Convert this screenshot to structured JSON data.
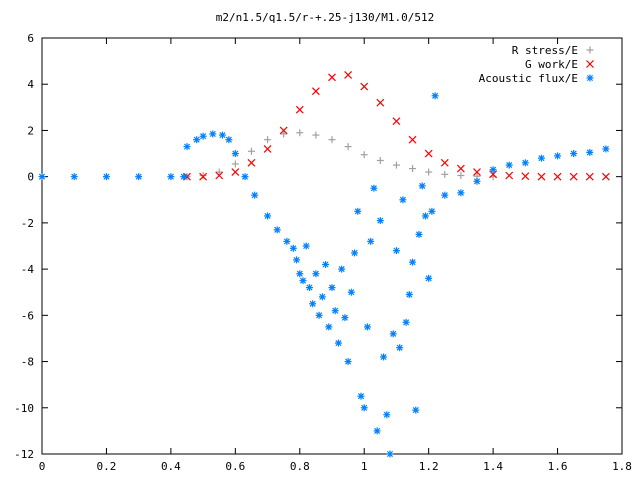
{
  "chart_data": {
    "type": "scatter",
    "title": "m2/n1.5/q1.5/r-+.25-j130/M1.0/512",
    "xlabel": "",
    "ylabel": "",
    "xlim": [
      0,
      1.8
    ],
    "ylim": [
      -12,
      6
    ],
    "x_ticks": [
      "0",
      "0.2",
      "0.4",
      "0.6",
      "0.8",
      "1",
      "1.2",
      "1.4",
      "1.6",
      "1.8"
    ],
    "y_ticks": [
      "6",
      "4",
      "2",
      "0",
      "-2",
      "-4",
      "-6",
      "-8",
      "-10",
      "-12"
    ],
    "grid": false,
    "legend_position": "top-right",
    "series": [
      {
        "name": "R stress/E",
        "marker": "plus",
        "color": "#a0a0a0",
        "x": [
          0.45,
          0.5,
          0.55,
          0.6,
          0.65,
          0.7,
          0.75,
          0.8,
          0.85,
          0.9,
          0.95,
          1.0,
          1.05,
          1.1,
          1.15,
          1.2,
          1.25,
          1.3,
          1.35,
          1.4
        ],
        "y": [
          0.0,
          0.05,
          0.2,
          0.55,
          1.1,
          1.6,
          1.85,
          1.9,
          1.8,
          1.6,
          1.3,
          0.95,
          0.7,
          0.5,
          0.35,
          0.2,
          0.1,
          0.05,
          0.02,
          0.0
        ]
      },
      {
        "name": "G work/E",
        "marker": "cross",
        "color": "#ff0000",
        "x": [
          0.45,
          0.5,
          0.55,
          0.6,
          0.65,
          0.7,
          0.75,
          0.8,
          0.85,
          0.9,
          0.95,
          1.0,
          1.05,
          1.1,
          1.15,
          1.2,
          1.25,
          1.3,
          1.35,
          1.4,
          1.45,
          1.5,
          1.55,
          1.6,
          1.65,
          1.7,
          1.75
        ],
        "y": [
          0.0,
          0.0,
          0.05,
          0.2,
          0.6,
          1.2,
          2.0,
          2.9,
          3.7,
          4.3,
          4.4,
          3.9,
          3.2,
          2.4,
          1.6,
          1.0,
          0.6,
          0.35,
          0.2,
          0.1,
          0.05,
          0.02,
          0.0,
          0.0,
          0.0,
          0.0,
          0.0
        ]
      },
      {
        "name": "Acoustic flux/E",
        "marker": "star",
        "color": "#0080ff",
        "x": [
          0.0,
          0.1,
          0.2,
          0.3,
          0.4,
          0.44,
          0.45,
          0.48,
          0.5,
          0.53,
          0.56,
          0.58,
          0.6,
          0.63,
          0.66,
          0.7,
          0.73,
          0.76,
          0.78,
          0.79,
          0.8,
          0.81,
          0.82,
          0.83,
          0.84,
          0.85,
          0.86,
          0.87,
          0.88,
          0.89,
          0.9,
          0.91,
          0.92,
          0.93,
          0.94,
          0.95,
          0.96,
          0.97,
          0.98,
          0.99,
          1.0,
          1.01,
          1.02,
          1.03,
          1.04,
          1.05,
          1.06,
          1.07,
          1.08,
          1.09,
          1.1,
          1.11,
          1.12,
          1.13,
          1.14,
          1.15,
          1.16,
          1.17,
          1.18,
          1.19,
          1.2,
          1.21,
          1.22,
          1.25,
          1.3,
          1.35,
          1.4,
          1.45,
          1.5,
          1.55,
          1.6,
          1.65,
          1.7,
          1.75
        ],
        "y": [
          0.0,
          0.0,
          0.0,
          0.0,
          0.0,
          0.0,
          1.3,
          1.6,
          1.75,
          1.85,
          1.8,
          1.6,
          1.0,
          0.0,
          -0.8,
          -1.7,
          -2.3,
          -2.8,
          -3.1,
          -3.6,
          -4.2,
          -4.5,
          -3.0,
          -4.8,
          -5.5,
          -4.2,
          -6.0,
          -5.2,
          -3.8,
          -6.5,
          -4.8,
          -5.8,
          -7.2,
          -4.0,
          -6.1,
          -8.0,
          -5.0,
          -3.3,
          -1.5,
          -9.5,
          -10.0,
          -6.5,
          -2.8,
          -0.5,
          -11.0,
          -1.9,
          -7.8,
          -10.3,
          -12.0,
          -6.8,
          -3.2,
          -7.4,
          -1.0,
          -6.3,
          -5.1,
          -3.7,
          -10.1,
          -2.5,
          -0.4,
          -1.7,
          -4.4,
          -1.5,
          3.5,
          -0.8,
          -0.7,
          -0.2,
          0.3,
          0.5,
          0.6,
          0.8,
          0.9,
          1.0,
          1.05,
          1.2
        ]
      }
    ]
  }
}
